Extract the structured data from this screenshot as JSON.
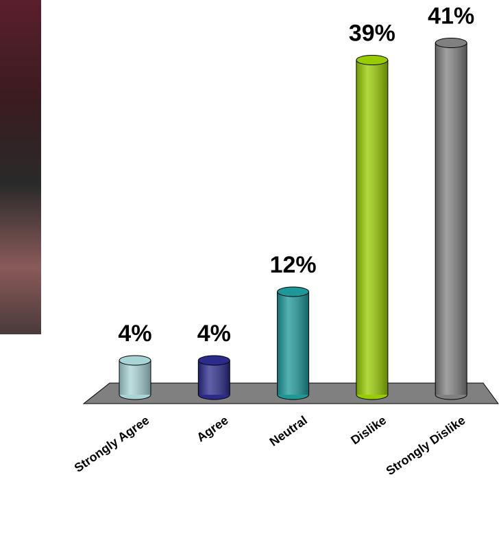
{
  "chart_data": {
    "type": "bar",
    "categories": [
      "Strongly Agree",
      "Agree",
      "Neutral",
      "Dislike",
      "Strongly Dislike"
    ],
    "values": [
      4,
      4,
      12,
      39,
      41
    ],
    "value_labels": [
      "4%",
      "4%",
      "12%",
      "39%",
      "41%"
    ],
    "colors": [
      "#a9d4d6",
      "#2b2b8c",
      "#1c9898",
      "#99cc00",
      "#808080"
    ]
  }
}
